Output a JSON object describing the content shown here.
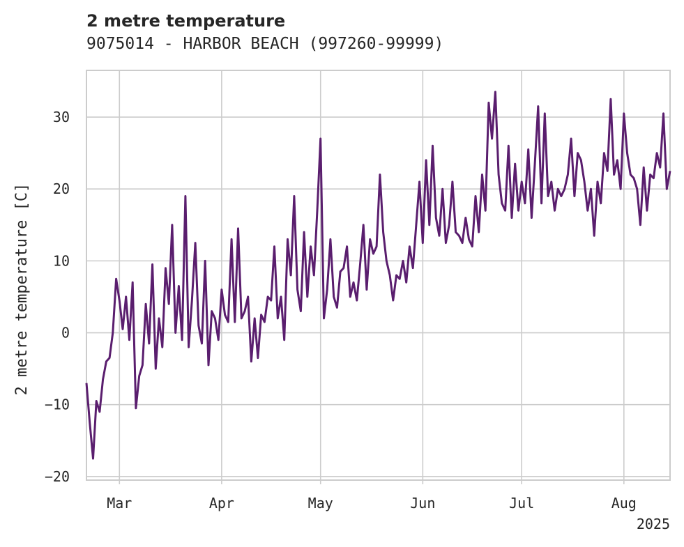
{
  "chart_data": {
    "type": "line",
    "title": "2 metre temperature",
    "subtitle": "9075014 - HARBOR BEACH (997260-99999)",
    "ylabel": "2 metre temperature [C]",
    "xlabel": "",
    "year_label": "2025",
    "ylim": [
      -20.5,
      36.5
    ],
    "xlim": [
      "2025-02-19",
      "2025-08-15"
    ],
    "yticks": [
      {
        "value": -20,
        "label": "−20"
      },
      {
        "value": -10,
        "label": "−10"
      },
      {
        "value": 0,
        "label": "0"
      },
      {
        "value": 10,
        "label": "10"
      },
      {
        "value": 20,
        "label": "20"
      },
      {
        "value": 30,
        "label": "30"
      }
    ],
    "xticks": [
      {
        "value": "2025-03-01",
        "label": "Mar"
      },
      {
        "value": "2025-04-01",
        "label": "Apr"
      },
      {
        "value": "2025-05-01",
        "label": "May"
      },
      {
        "value": "2025-06-01",
        "label": "Jun"
      },
      {
        "value": "2025-07-01",
        "label": "Jul"
      },
      {
        "value": "2025-08-01",
        "label": "Aug"
      }
    ],
    "grid": true,
    "line_color": "#5a1e6e",
    "series": [
      {
        "points": [
          [
            "2025-02-19",
            -7
          ],
          [
            "2025-02-20",
            -12.5
          ],
          [
            "2025-02-21",
            -17.5
          ],
          [
            "2025-02-22",
            -9.5
          ],
          [
            "2025-02-23",
            -11
          ],
          [
            "2025-02-24",
            -6.5
          ],
          [
            "2025-02-25",
            -4
          ],
          [
            "2025-02-26",
            -3.5
          ],
          [
            "2025-02-27",
            0
          ],
          [
            "2025-02-28",
            7.5
          ],
          [
            "2025-03-01",
            4.5
          ],
          [
            "2025-03-02",
            0.5
          ],
          [
            "2025-03-03",
            5
          ],
          [
            "2025-03-04",
            -1
          ],
          [
            "2025-03-05",
            7
          ],
          [
            "2025-03-06",
            -10.5
          ],
          [
            "2025-03-07",
            -6
          ],
          [
            "2025-03-08",
            -4.5
          ],
          [
            "2025-03-09",
            4
          ],
          [
            "2025-03-10",
            -1.5
          ],
          [
            "2025-03-11",
            9.5
          ],
          [
            "2025-03-12",
            -5
          ],
          [
            "2025-03-13",
            2
          ],
          [
            "2025-03-14",
            -2
          ],
          [
            "2025-03-15",
            9
          ],
          [
            "2025-03-16",
            4
          ],
          [
            "2025-03-17",
            15
          ],
          [
            "2025-03-18",
            0
          ],
          [
            "2025-03-19",
            6.5
          ],
          [
            "2025-03-20",
            -1
          ],
          [
            "2025-03-21",
            19
          ],
          [
            "2025-03-22",
            -2
          ],
          [
            "2025-03-23",
            4.5
          ],
          [
            "2025-03-24",
            12.5
          ],
          [
            "2025-03-25",
            1
          ],
          [
            "2025-03-26",
            -1.5
          ],
          [
            "2025-03-27",
            10
          ],
          [
            "2025-03-28",
            -4.5
          ],
          [
            "2025-03-29",
            3
          ],
          [
            "2025-03-30",
            2
          ],
          [
            "2025-03-31",
            -1
          ],
          [
            "2025-04-01",
            6
          ],
          [
            "2025-04-02",
            2.5
          ],
          [
            "2025-04-03",
            1.5
          ],
          [
            "2025-04-04",
            13
          ],
          [
            "2025-04-05",
            1.5
          ],
          [
            "2025-04-06",
            14.5
          ],
          [
            "2025-04-07",
            2
          ],
          [
            "2025-04-08",
            3
          ],
          [
            "2025-04-09",
            5
          ],
          [
            "2025-04-10",
            -4
          ],
          [
            "2025-04-11",
            2
          ],
          [
            "2025-04-12",
            -3.5
          ],
          [
            "2025-04-13",
            2.5
          ],
          [
            "2025-04-14",
            1.5
          ],
          [
            "2025-04-15",
            5
          ],
          [
            "2025-04-16",
            4.5
          ],
          [
            "2025-04-17",
            12
          ],
          [
            "2025-04-18",
            2
          ],
          [
            "2025-04-19",
            5
          ],
          [
            "2025-04-20",
            -1
          ],
          [
            "2025-04-21",
            13
          ],
          [
            "2025-04-22",
            8
          ],
          [
            "2025-04-23",
            19
          ],
          [
            "2025-04-24",
            6
          ],
          [
            "2025-04-25",
            3
          ],
          [
            "2025-04-26",
            14
          ],
          [
            "2025-04-27",
            5
          ],
          [
            "2025-04-28",
            12
          ],
          [
            "2025-04-29",
            8
          ],
          [
            "2025-04-30",
            17
          ],
          [
            "2025-05-01",
            27
          ],
          [
            "2025-05-02",
            2
          ],
          [
            "2025-05-03",
            6
          ],
          [
            "2025-05-04",
            13
          ],
          [
            "2025-05-05",
            5
          ],
          [
            "2025-05-06",
            3.5
          ],
          [
            "2025-05-07",
            8.5
          ],
          [
            "2025-05-08",
            9
          ],
          [
            "2025-05-09",
            12
          ],
          [
            "2025-05-10",
            5
          ],
          [
            "2025-05-11",
            7
          ],
          [
            "2025-05-12",
            4.5
          ],
          [
            "2025-05-13",
            9.5
          ],
          [
            "2025-05-14",
            15
          ],
          [
            "2025-05-15",
            6
          ],
          [
            "2025-05-16",
            13
          ],
          [
            "2025-05-17",
            11
          ],
          [
            "2025-05-18",
            12
          ],
          [
            "2025-05-19",
            22
          ],
          [
            "2025-05-20",
            14
          ],
          [
            "2025-05-21",
            10
          ],
          [
            "2025-05-22",
            8
          ],
          [
            "2025-05-23",
            4.5
          ],
          [
            "2025-05-24",
            8
          ],
          [
            "2025-05-25",
            7.5
          ],
          [
            "2025-05-26",
            10
          ],
          [
            "2025-05-27",
            7
          ],
          [
            "2025-05-28",
            12
          ],
          [
            "2025-05-29",
            9
          ],
          [
            "2025-05-30",
            15
          ],
          [
            "2025-05-31",
            21
          ],
          [
            "2025-06-01",
            12.5
          ],
          [
            "2025-06-02",
            24
          ],
          [
            "2025-06-03",
            15
          ],
          [
            "2025-06-04",
            26
          ],
          [
            "2025-06-05",
            16
          ],
          [
            "2025-06-06",
            13.5
          ],
          [
            "2025-06-07",
            20
          ],
          [
            "2025-06-08",
            12.5
          ],
          [
            "2025-06-09",
            15
          ],
          [
            "2025-06-10",
            21
          ],
          [
            "2025-06-11",
            14
          ],
          [
            "2025-06-12",
            13.5
          ],
          [
            "2025-06-13",
            12.5
          ],
          [
            "2025-06-14",
            16
          ],
          [
            "2025-06-15",
            13
          ],
          [
            "2025-06-16",
            12
          ],
          [
            "2025-06-17",
            19
          ],
          [
            "2025-06-18",
            14
          ],
          [
            "2025-06-19",
            22
          ],
          [
            "2025-06-20",
            17
          ],
          [
            "2025-06-21",
            32
          ],
          [
            "2025-06-22",
            27
          ],
          [
            "2025-06-23",
            33.5
          ],
          [
            "2025-06-24",
            22
          ],
          [
            "2025-06-25",
            18
          ],
          [
            "2025-06-26",
            17
          ],
          [
            "2025-06-27",
            26
          ],
          [
            "2025-06-28",
            16
          ],
          [
            "2025-06-29",
            23.5
          ],
          [
            "2025-06-30",
            17
          ],
          [
            "2025-07-01",
            21
          ],
          [
            "2025-07-02",
            18
          ],
          [
            "2025-07-03",
            25.5
          ],
          [
            "2025-07-04",
            16
          ],
          [
            "2025-07-05",
            23.5
          ],
          [
            "2025-07-06",
            31.5
          ],
          [
            "2025-07-07",
            18
          ],
          [
            "2025-07-08",
            30.5
          ],
          [
            "2025-07-09",
            19
          ],
          [
            "2025-07-10",
            21
          ],
          [
            "2025-07-11",
            17
          ],
          [
            "2025-07-12",
            20
          ],
          [
            "2025-07-13",
            19
          ],
          [
            "2025-07-14",
            20
          ],
          [
            "2025-07-15",
            22
          ],
          [
            "2025-07-16",
            27
          ],
          [
            "2025-07-17",
            19
          ],
          [
            "2025-07-18",
            25
          ],
          [
            "2025-07-19",
            24
          ],
          [
            "2025-07-20",
            21
          ],
          [
            "2025-07-21",
            17
          ],
          [
            "2025-07-22",
            20
          ],
          [
            "2025-07-23",
            13.5
          ],
          [
            "2025-07-24",
            21
          ],
          [
            "2025-07-25",
            18
          ],
          [
            "2025-07-26",
            25
          ],
          [
            "2025-07-27",
            22.5
          ],
          [
            "2025-07-28",
            32.5
          ],
          [
            "2025-07-29",
            22
          ],
          [
            "2025-07-30",
            24
          ],
          [
            "2025-07-31",
            20
          ],
          [
            "2025-08-01",
            30.5
          ],
          [
            "2025-08-02",
            25
          ],
          [
            "2025-08-03",
            22
          ],
          [
            "2025-08-04",
            21.5
          ],
          [
            "2025-08-05",
            20
          ],
          [
            "2025-08-06",
            15
          ],
          [
            "2025-08-07",
            23
          ],
          [
            "2025-08-08",
            17
          ],
          [
            "2025-08-09",
            22
          ],
          [
            "2025-08-10",
            21.5
          ],
          [
            "2025-08-11",
            25
          ],
          [
            "2025-08-12",
            23
          ],
          [
            "2025-08-13",
            30.5
          ],
          [
            "2025-08-14",
            20
          ],
          [
            "2025-08-15",
            22.5
          ]
        ]
      }
    ]
  }
}
